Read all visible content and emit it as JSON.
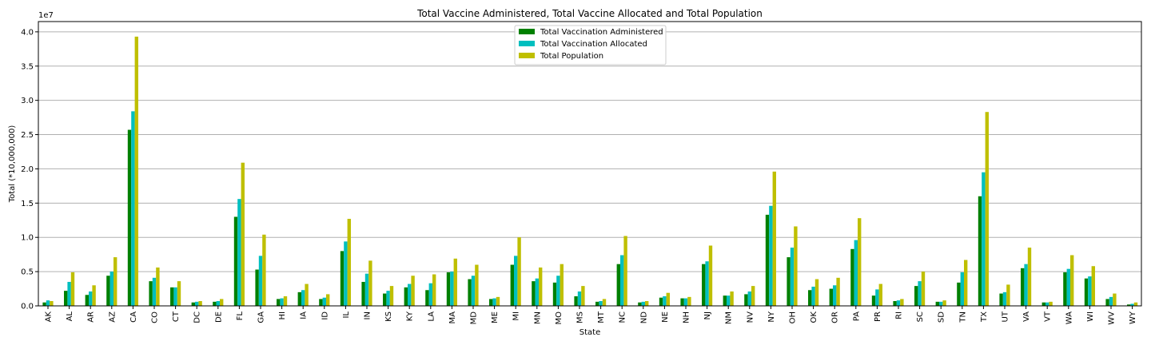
{
  "chart_data": {
    "type": "bar",
    "title": "Total Vaccine Administered, Total Vaccine Allocated and Total Population",
    "xlabel": "State",
    "ylabel": "Total (*10,000,000)",
    "y_multiplier_label": "1e7",
    "ylim": [
      0,
      4.15
    ],
    "y_ticks": [
      "0.0",
      "0.5",
      "1.0",
      "1.5",
      "2.0",
      "2.5",
      "3.0",
      "3.5",
      "4.0"
    ],
    "grid": "horizontal",
    "legend_position": "top-center",
    "categories": [
      "AK",
      "AL",
      "AR",
      "AZ",
      "CA",
      "CO",
      "CT",
      "DC",
      "DE",
      "FL",
      "GA",
      "HI",
      "IA",
      "ID",
      "IL",
      "IN",
      "KS",
      "KY",
      "LA",
      "MA",
      "MD",
      "ME",
      "MI",
      "MN",
      "MO",
      "MS",
      "MT",
      "NC",
      "ND",
      "NE",
      "NH",
      "NJ",
      "NM",
      "NV",
      "NY",
      "OH",
      "OK",
      "OR",
      "PA",
      "PR",
      "RI",
      "SC",
      "SD",
      "TN",
      "TX",
      "UT",
      "VA",
      "VT",
      "WA",
      "WI",
      "WV",
      "WY"
    ],
    "series": [
      {
        "name": "Total Vaccination Administered",
        "color": "#008000",
        "values": [
          0.05,
          0.22,
          0.16,
          0.44,
          2.57,
          0.36,
          0.27,
          0.05,
          0.06,
          1.3,
          0.53,
          0.1,
          0.2,
          0.1,
          0.8,
          0.35,
          0.18,
          0.27,
          0.23,
          0.49,
          0.39,
          0.1,
          0.6,
          0.36,
          0.34,
          0.14,
          0.06,
          0.61,
          0.05,
          0.12,
          0.11,
          0.61,
          0.15,
          0.17,
          1.33,
          0.71,
          0.23,
          0.25,
          0.83,
          0.15,
          0.07,
          0.29,
          0.06,
          0.34,
          1.6,
          0.18,
          0.55,
          0.05,
          0.49,
          0.4,
          0.1,
          0.02
        ]
      },
      {
        "name": "Total Vaccination Allocated",
        "color": "#00bfbf",
        "values": [
          0.08,
          0.35,
          0.21,
          0.5,
          2.84,
          0.41,
          0.27,
          0.06,
          0.07,
          1.56,
          0.73,
          0.11,
          0.23,
          0.12,
          0.94,
          0.47,
          0.22,
          0.32,
          0.33,
          0.5,
          0.44,
          0.11,
          0.73,
          0.4,
          0.44,
          0.21,
          0.07,
          0.74,
          0.06,
          0.14,
          0.11,
          0.65,
          0.15,
          0.21,
          1.46,
          0.85,
          0.28,
          0.3,
          0.96,
          0.24,
          0.08,
          0.36,
          0.06,
          0.49,
          1.95,
          0.2,
          0.61,
          0.05,
          0.54,
          0.43,
          0.13,
          0.03
        ]
      },
      {
        "name": "Total Population",
        "color": "#bfbf00",
        "values": [
          0.07,
          0.49,
          0.3,
          0.71,
          3.93,
          0.56,
          0.36,
          0.07,
          0.1,
          2.09,
          1.04,
          0.14,
          0.32,
          0.17,
          1.27,
          0.66,
          0.29,
          0.44,
          0.46,
          0.69,
          0.6,
          0.13,
          1.0,
          0.56,
          0.61,
          0.29,
          0.1,
          1.02,
          0.07,
          0.19,
          0.13,
          0.88,
          0.21,
          0.29,
          1.96,
          1.16,
          0.39,
          0.41,
          1.28,
          0.32,
          0.1,
          0.5,
          0.08,
          0.67,
          2.83,
          0.31,
          0.85,
          0.06,
          0.74,
          0.58,
          0.18,
          0.05
        ]
      }
    ]
  }
}
